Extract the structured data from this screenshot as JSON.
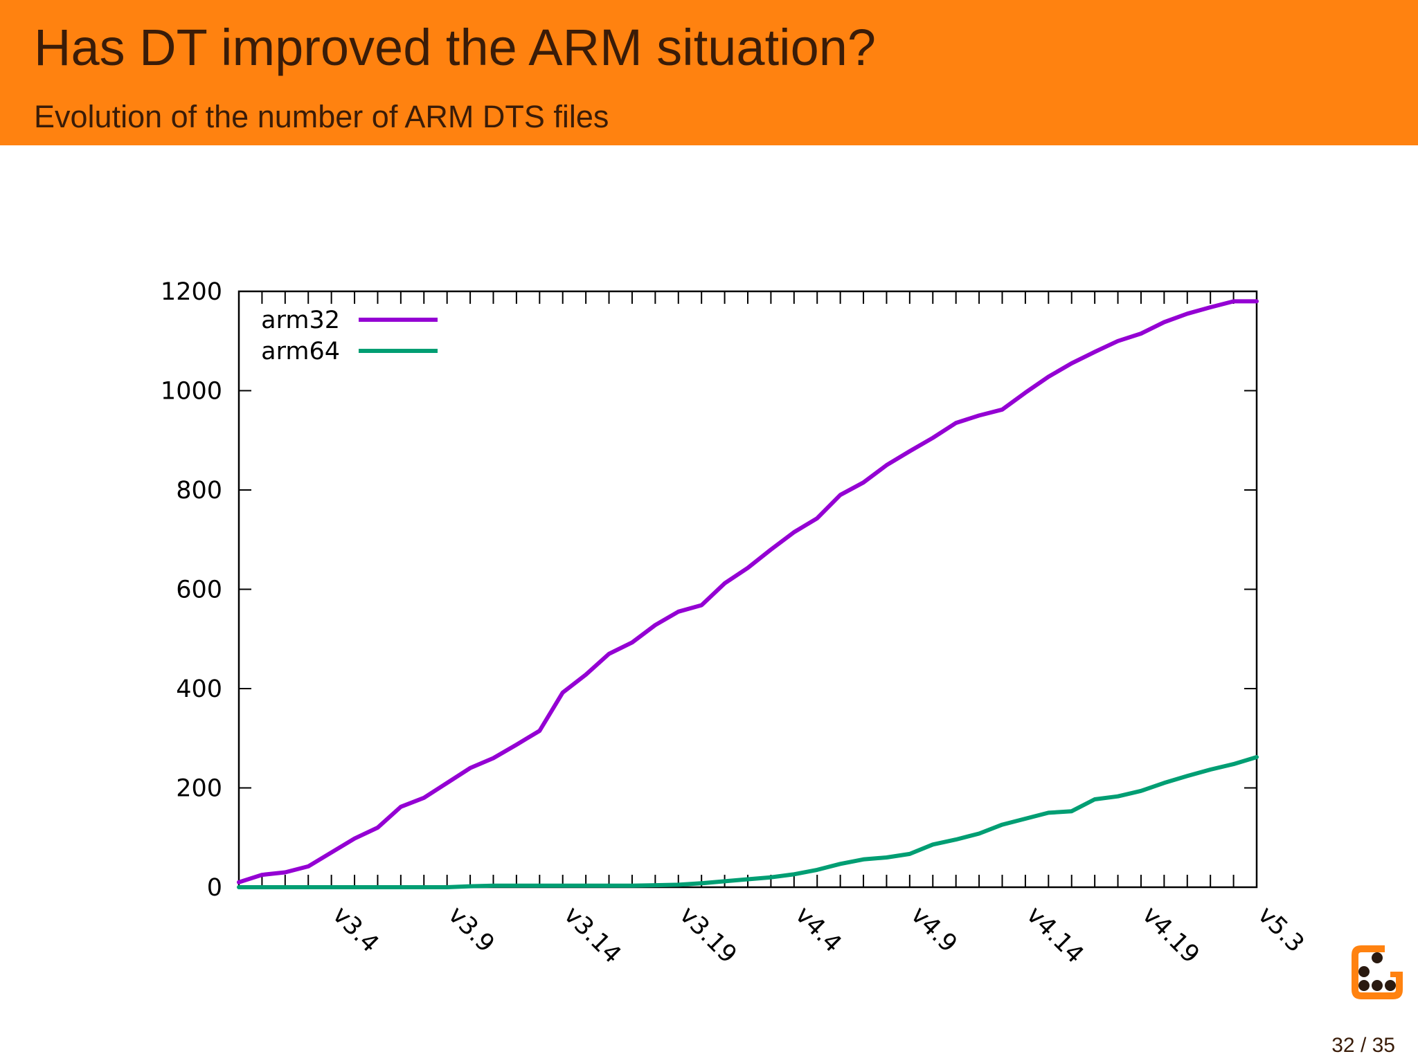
{
  "slide": {
    "title": "Has DT improved the ARM situation?",
    "subtitle": "Evolution of the number of ARM DTS files",
    "page_number": "32 / 35"
  },
  "colors": {
    "header_bg": "#ff8210",
    "header_text": "#3a1c08",
    "arm32": "#9400d3",
    "arm64": "#009e73"
  },
  "chart_data": {
    "type": "line",
    "title": "",
    "xlabel": "",
    "ylabel": "",
    "ylim": [
      0,
      1200
    ],
    "yticks": [
      0,
      200,
      400,
      600,
      800,
      1000,
      1200
    ],
    "x": [
      "v3.0",
      "v3.1",
      "v3.2",
      "v3.3",
      "v3.4",
      "v3.5",
      "v3.6",
      "v3.7",
      "v3.8",
      "v3.9",
      "v3.10",
      "v3.11",
      "v3.12",
      "v3.13",
      "v3.14",
      "v3.15",
      "v3.16",
      "v3.17",
      "v3.18",
      "v3.19",
      "v4.0",
      "v4.1",
      "v4.2",
      "v4.3",
      "v4.4",
      "v4.5",
      "v4.6",
      "v4.7",
      "v4.8",
      "v4.9",
      "v4.10",
      "v4.11",
      "v4.12",
      "v4.13",
      "v4.14",
      "v4.15",
      "v4.16",
      "v4.17",
      "v4.18",
      "v4.19",
      "v4.20",
      "v5.0",
      "v5.1",
      "v5.2",
      "v5.3"
    ],
    "xtick_labels": [
      "v3.4",
      "v3.9",
      "v3.14",
      "v3.19",
      "v4.4",
      "v4.9",
      "v4.14",
      "v4.19",
      "v5.3"
    ],
    "legend_position": "top-left",
    "grid": false,
    "series": [
      {
        "name": "arm32",
        "color": "#9400d3",
        "values": [
          10,
          25,
          30,
          42,
          70,
          98,
          120,
          162,
          180,
          210,
          240,
          260,
          287,
          315,
          392,
          428,
          470,
          493,
          528,
          555,
          568,
          612,
          643,
          680,
          715,
          743,
          790,
          815,
          850,
          878,
          905,
          935,
          950,
          962,
          996,
          1028,
          1055,
          1078,
          1100,
          1115,
          1138,
          1155,
          1168,
          1180,
          1180
        ]
      },
      {
        "name": "arm64",
        "color": "#009e73",
        "values": [
          0,
          0,
          0,
          0,
          0,
          0,
          0,
          0,
          0,
          0,
          2,
          3,
          3,
          3,
          3,
          3,
          3,
          3,
          4,
          5,
          8,
          12,
          16,
          20,
          26,
          35,
          47,
          56,
          60,
          67,
          86,
          96,
          108,
          126,
          138,
          150,
          153,
          177,
          183,
          194,
          210,
          224,
          237,
          248,
          262
        ]
      }
    ]
  }
}
